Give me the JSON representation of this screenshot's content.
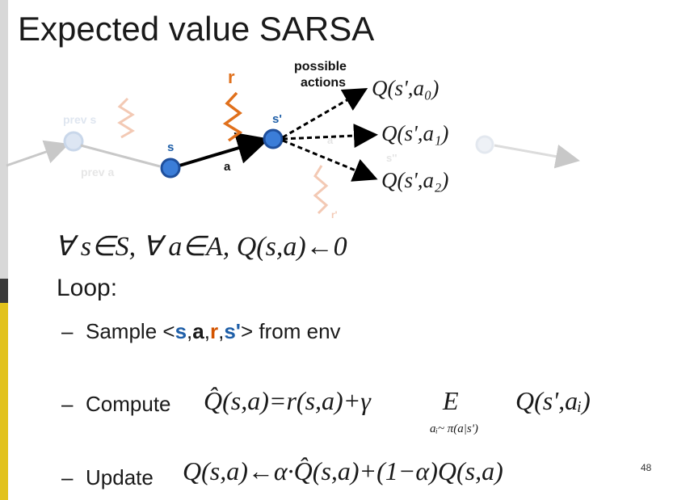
{
  "slide": {
    "title": "Expected value SARSA",
    "page_number": "48"
  },
  "diagram": {
    "possible_actions_line1": "possible",
    "possible_actions_line2": "actions",
    "r_label": "r",
    "s_label": "s",
    "s_prime_label": "s'",
    "a_label": "a",
    "faded_prev_s": "prev s",
    "faded_prev_a": "prev a",
    "faded_a": "a'",
    "faded_r": "r'",
    "faded_s": "s''",
    "q_labels": [
      "Q(s',a₀)",
      "Q(s',a₁)",
      "Q(s',a₂)"
    ],
    "colors": {
      "node_blue": "#3b7dd8",
      "r_orange": "#e0701c",
      "arrow_black": "#000000"
    }
  },
  "init_formula": "∀ s∈S, ∀ a∈A, Q(s,a)←0",
  "loop_label": "Loop:",
  "bullets": {
    "sample": {
      "prefix": "Sample <",
      "s": "s",
      "a": "a",
      "r": "r",
      "sp": "s'",
      "suffix": "> from env"
    },
    "compute": {
      "label": "Compute",
      "formula": "Q̂(s,a)=r(s,a)+γ",
      "expect_E": "E",
      "expect_sub": "aᵢ~ π(a|s')",
      "formula_tail": "Q(s',aᵢ)"
    },
    "update": {
      "label": "Update",
      "formula": "Q(s,a)←α·Q̂(s,a)+(1−α)Q(s,a)"
    }
  }
}
